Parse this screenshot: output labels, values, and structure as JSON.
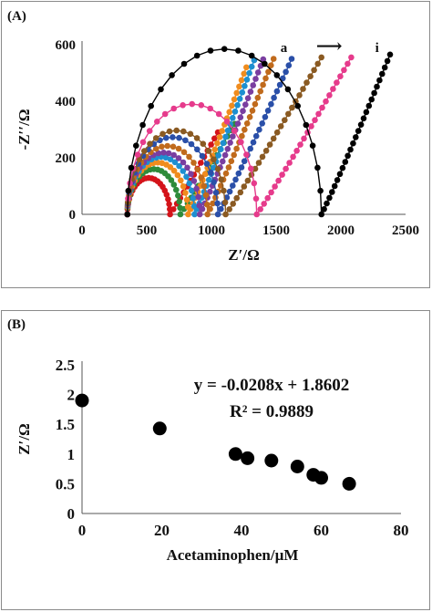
{
  "chart_data": [
    {
      "type": "scatter",
      "panel_label": "(A)",
      "xlabel": "Z′/Ω",
      "ylabel": "-Z′′/Ω",
      "xlim": [
        0,
        2500
      ],
      "ylim": [
        0,
        600
      ],
      "x_ticks": [
        "0",
        "500",
        "1000",
        "1500",
        "2000",
        "2500"
      ],
      "y_ticks": [
        "0",
        "200",
        "400",
        "600"
      ],
      "annotations": {
        "start": "a",
        "arrow": "⟶",
        "end": "i"
      },
      "grid": false,
      "series": [
        {
          "color": "#d4141a",
          "R0": 350,
          "Rct": 330,
          "tailEnd": [
            1050,
            290
          ]
        },
        {
          "color": "#2e8b3a",
          "R0": 350,
          "Rct": 410,
          "tailEnd": [
            1180,
            320
          ]
        },
        {
          "color": "#f08c1e",
          "R0": 350,
          "Rct": 470,
          "tailEnd": [
            1270,
            520
          ]
        },
        {
          "color": "#1e8fd0",
          "R0": 350,
          "Rct": 520,
          "tailEnd": [
            1330,
            545
          ]
        },
        {
          "color": "#7a3ea0",
          "R0": 350,
          "Rct": 560,
          "tailEnd": [
            1400,
            548
          ]
        },
        {
          "color": "#c06a1c",
          "R0": 350,
          "Rct": 620,
          "tailEnd": [
            1480,
            550
          ]
        },
        {
          "color": "#2a4fa8",
          "R0": 350,
          "Rct": 700,
          "tailEnd": [
            1620,
            550
          ]
        },
        {
          "color": "#8a5a22",
          "R0": 350,
          "Rct": 760,
          "tailEnd": [
            1850,
            555
          ]
        },
        {
          "color": "#e63b8c",
          "R0": 350,
          "Rct": 1000,
          "tailEnd": [
            2080,
            555
          ]
        },
        {
          "color": "#000000",
          "R0": 350,
          "Rct": 1500,
          "tailEnd": [
            2380,
            565
          ]
        }
      ]
    },
    {
      "type": "scatter",
      "panel_label": "(B)",
      "xlabel": "Acetaminophen/µM",
      "ylabel": "Z′/Ω",
      "xlim": [
        0,
        80
      ],
      "ylim": [
        0,
        2.5
      ],
      "x_ticks": [
        "0",
        "20",
        "40",
        "60",
        "80"
      ],
      "y_ticks": [
        "0",
        "0.5",
        "1",
        "1.5",
        "2",
        "2.5"
      ],
      "equation": "y = -0.0208x + 1.8602",
      "r_squared": "R² = 0.9889",
      "grid": false,
      "x": [
        0,
        19.5,
        38.5,
        41.5,
        47.5,
        54,
        58,
        60,
        67
      ],
      "y": [
        1.9,
        1.43,
        1.0,
        0.93,
        0.89,
        0.79,
        0.65,
        0.6,
        0.5
      ]
    }
  ]
}
